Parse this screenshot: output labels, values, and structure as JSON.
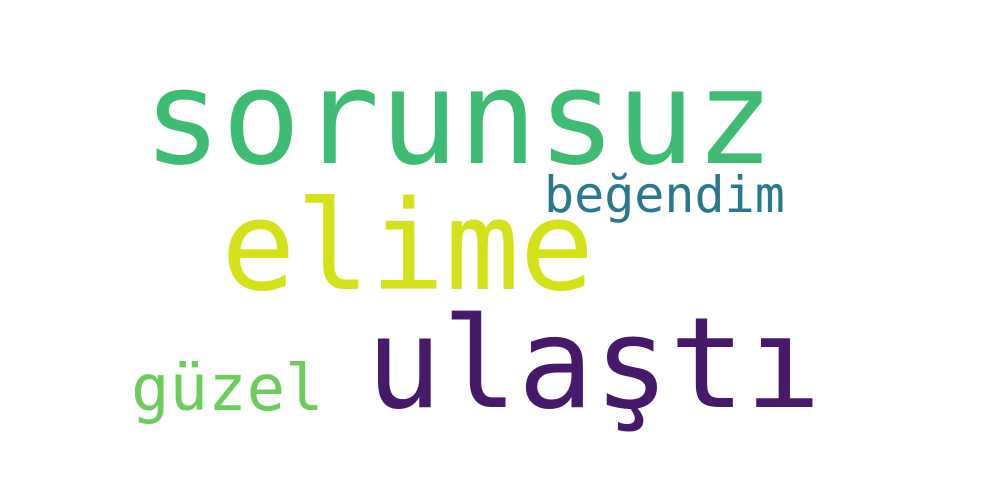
{
  "word_cloud": {
    "words": [
      {
        "text": "sorunsuz",
        "color": "#3fbc73"
      },
      {
        "text": "elime",
        "color": "#d4e21a"
      },
      {
        "text": "beğendim",
        "color": "#2a788e"
      },
      {
        "text": "ulaştı",
        "color": "#46196b"
      },
      {
        "text": "güzel",
        "color": "#6ccd5a"
      }
    ],
    "background": "#ffffff"
  }
}
